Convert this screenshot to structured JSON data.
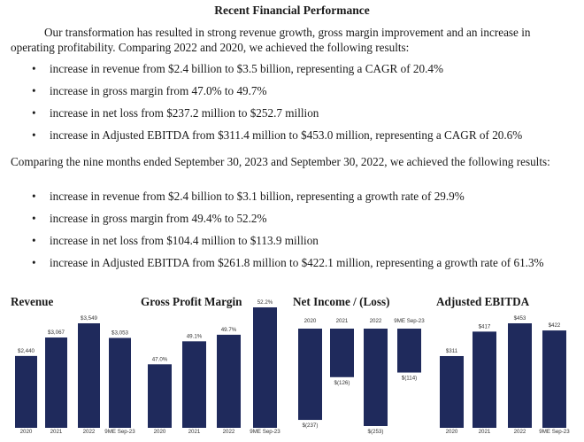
{
  "title": "Recent Financial Performance",
  "intro": "Our transformation has resulted in strong revenue growth, gross margin improvement and an increase in operating profitability. Comparing 2022 and 2020, we achieved the following results:",
  "bullets_a": [
    "increase in revenue from $2.4 billion to $3.5 billion, representing a CAGR of 20.4%",
    "increase in gross margin from 47.0% to 49.7%",
    "increase in net loss from $237.2 million to $252.7 million",
    "increase in Adjusted EBITDA from $311.4 million to $453.0 million, representing a CAGR of 20.6%"
  ],
  "intro2": "Comparing the nine months ended September 30, 2023 and September 30, 2022, we achieved the following results:",
  "bullets_b": [
    "increase in revenue from $2.4 billion to $3.1 billion, representing a growth rate of 29.9%",
    "increase in gross margin from 49.4% to 52.2%",
    "increase in net loss from $104.4 million to $113.9 million",
    "increase in Adjusted EBITDA from $261.8 million to $422.1 million, representing a growth rate of 61.3%"
  ],
  "bar_color": "#1f2a5c",
  "chart_data": [
    {
      "type": "bar",
      "title": "Revenue",
      "categories": [
        "2020",
        "2021",
        "2022",
        "9ME Sep-23"
      ],
      "values": [
        2440,
        3067,
        3549,
        3053
      ],
      "labels": [
        "$2,440",
        "$3,067",
        "$3,549",
        "$3,053"
      ]
    },
    {
      "type": "bar",
      "title": "Gross Profit Margin",
      "categories": [
        "2020",
        "2021",
        "2022",
        "9ME Sep-23"
      ],
      "values": [
        47.0,
        49.1,
        49.7,
        52.2
      ],
      "labels": [
        "47.0%",
        "49.1%",
        "49.7%",
        "52.2%"
      ]
    },
    {
      "type": "bar",
      "title": "Net Income / (Loss)",
      "categories": [
        "2020",
        "2021",
        "2022",
        "9ME Sep-23"
      ],
      "values": [
        -237,
        -126,
        -253,
        -114
      ],
      "labels": [
        "$(237)",
        "$(126)",
        "$(253)",
        "$(114)"
      ]
    },
    {
      "type": "bar",
      "title": "Adjusted EBITDA",
      "categories": [
        "2020",
        "2021",
        "2022",
        "9ME Sep-23"
      ],
      "values": [
        311,
        417,
        453,
        422
      ],
      "labels": [
        "$311",
        "$417",
        "$453",
        "$422"
      ]
    }
  ]
}
